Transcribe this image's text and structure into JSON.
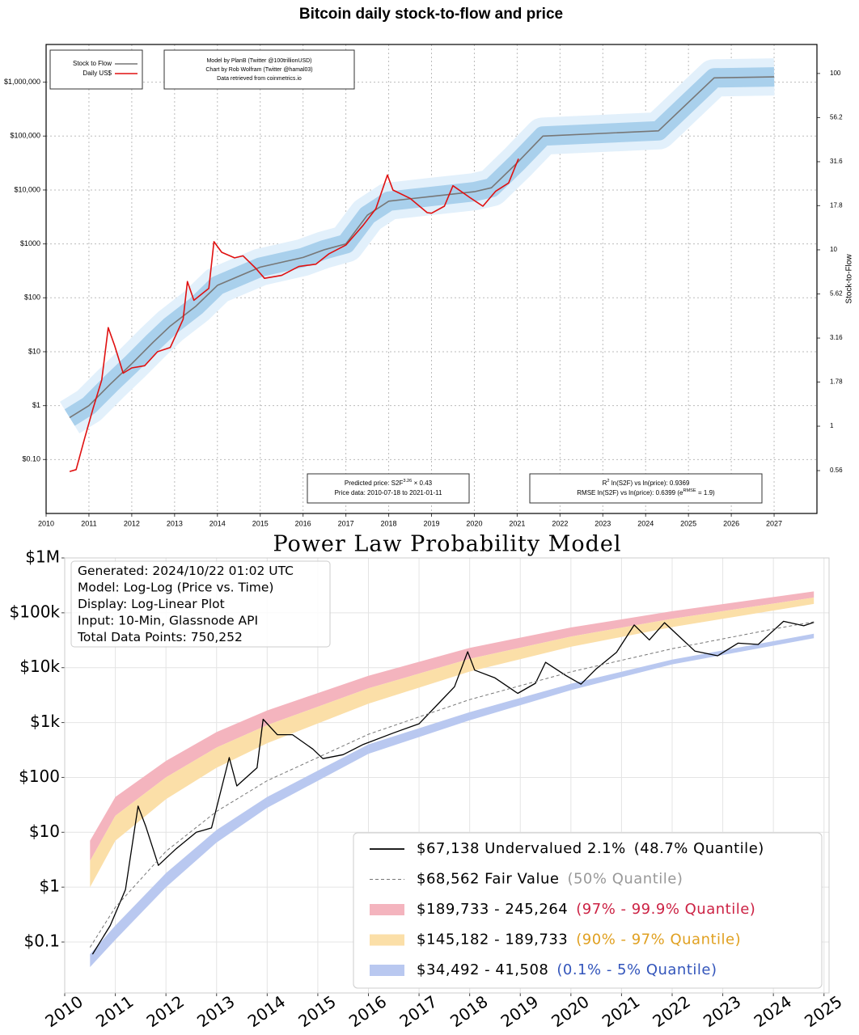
{
  "chart_data": [
    {
      "type": "line",
      "title": "Bitcoin daily stock-to-flow and price",
      "xlim": [
        2010,
        2028
      ],
      "xticks": [
        2010,
        2011,
        2012,
        2013,
        2014,
        2015,
        2016,
        2017,
        2018,
        2019,
        2020,
        2021,
        2022,
        2023,
        2024,
        2025,
        2026,
        2027
      ],
      "ylim": [
        0.01,
        5000000
      ],
      "log_y": true,
      "yticks": [
        {
          "value": 0.1,
          "label": "$0.10"
        },
        {
          "value": 1,
          "label": "$1"
        },
        {
          "value": 10,
          "label": "$10"
        },
        {
          "value": 100,
          "label": "$100"
        },
        {
          "value": 1000,
          "label": "$1000"
        },
        {
          "value": 10000,
          "label": "$10,000"
        },
        {
          "value": 100000,
          "label": "$100,000"
        },
        {
          "value": 1000000,
          "label": "$1,000,000"
        }
      ],
      "y2lim": [
        0.32,
        146
      ],
      "y2ticks": [
        0.56,
        1,
        1.78,
        3.16,
        5.62,
        10,
        17.8,
        31.6,
        56.2,
        100
      ],
      "y2label": "Stock-to-Flow",
      "grid": true,
      "grid_style": "dotted",
      "legend_position": "upper left",
      "series": [
        {
          "name": "Stock to Flow",
          "color": "#777777",
          "band": true,
          "x": [
            2010.55,
            2011,
            2011.5,
            2012,
            2012.5,
            2012.9,
            2013.5,
            2014,
            2015,
            2016,
            2016.5,
            2017,
            2017.5,
            2018,
            2019,
            2020,
            2020.4,
            2021,
            2021.6,
            2024.3,
            2025.6,
            2027
          ],
          "values": [
            0.6,
            1,
            2.5,
            6,
            15,
            30,
            70,
            170,
            370,
            560,
            780,
            1000,
            3400,
            6200,
            7600,
            9300,
            11000,
            32000,
            100000,
            125000,
            1200000,
            1250000
          ]
        },
        {
          "name": "Daily US$",
          "color": "#e01010",
          "x": [
            2010.55,
            2010.7,
            2010.9,
            2011.1,
            2011.3,
            2011.45,
            2011.6,
            2011.8,
            2012,
            2012.3,
            2012.6,
            2012.9,
            2013.2,
            2013.3,
            2013.45,
            2013.8,
            2013.92,
            2014.1,
            2014.4,
            2014.6,
            2014.9,
            2015.1,
            2015.5,
            2015.9,
            2016.3,
            2016.6,
            2017,
            2017.4,
            2017.7,
            2017.97,
            2018.1,
            2018.5,
            2018.9,
            2019,
            2019.3,
            2019.5,
            2019.9,
            2020.2,
            2020.5,
            2020.8,
            2021.03
          ],
          "values": [
            0.06,
            0.065,
            0.25,
            0.9,
            3,
            28,
            13,
            4,
            5,
            5.5,
            10,
            12,
            40,
            200,
            90,
            150,
            1100,
            700,
            550,
            600,
            350,
            230,
            260,
            380,
            420,
            650,
            950,
            2200,
            4500,
            19000,
            10000,
            7000,
            3800,
            3700,
            5000,
            12000,
            7200,
            5000,
            9500,
            13500,
            38000
          ]
        }
      ],
      "annotations": [
        {
          "lines": [
            [
              "Model by PlanB (Twitter @100trillionUSD)"
            ],
            [
              "Chart by Rob Wolfram (Twitter @hamal03)"
            ],
            [
              "Data retrieved from coinmetrics.io"
            ]
          ]
        },
        {
          "lines": [
            [
              "Predicted price: S2F",
              {
                "sup": "3.26"
              },
              "× 0.43"
            ],
            [
              "Price data: 2010-07-18 to 2021-01-11"
            ]
          ]
        },
        {
          "lines": [
            [
              "R",
              {
                "sup": "2"
              },
              "ln(S2F) vs ln(price): 0.9369"
            ],
            [
              "RMSE ln(S2F) vs ln(price): 0.6399 (e",
              {
                "sup": "RMSE"
              },
              "= 1.9)"
            ]
          ]
        }
      ]
    },
    {
      "type": "line",
      "title": "Power Law Probability Model",
      "xlim": [
        2010,
        2025.1
      ],
      "xticks": [
        2010,
        2011,
        2012,
        2013,
        2014,
        2015,
        2016,
        2017,
        2018,
        2019,
        2020,
        2021,
        2022,
        2023,
        2024,
        2025
      ],
      "ylim": [
        0.0118,
        1000000
      ],
      "log_y": true,
      "yticks": [
        {
          "value": 0.1,
          "label": "$0.1"
        },
        {
          "value": 1,
          "label": "$1"
        },
        {
          "value": 10,
          "label": "$10"
        },
        {
          "value": 100,
          "label": "$100"
        },
        {
          "value": 1000,
          "label": "$1k"
        },
        {
          "value": 10000,
          "label": "$10k"
        },
        {
          "value": 100000,
          "label": "$100k"
        },
        {
          "value": 1000000,
          "label": "$1M"
        }
      ],
      "grid": true,
      "grid_style": "solid",
      "legend_position": "lower right",
      "series": [
        {
          "name": "$67,138  Undervalued 2.1%",
          "note": "(48.7% Quantile)",
          "note_color": "#000000",
          "color": "#000000",
          "x": [
            2010.55,
            2010.9,
            2011.2,
            2011.45,
            2011.6,
            2011.85,
            2012.2,
            2012.6,
            2012.9,
            2013.25,
            2013.4,
            2013.8,
            2013.92,
            2014.2,
            2014.5,
            2014.9,
            2015.1,
            2015.5,
            2015.9,
            2016.5,
            2017,
            2017.4,
            2017.7,
            2017.96,
            2018.1,
            2018.5,
            2018.95,
            2019.3,
            2019.5,
            2019.9,
            2020.2,
            2020.5,
            2020.9,
            2021.25,
            2021.55,
            2021.85,
            2022.1,
            2022.45,
            2022.9,
            2023.3,
            2023.7,
            2023.95,
            2024.2,
            2024.6,
            2024.8
          ],
          "values": [
            0.06,
            0.2,
            0.9,
            30,
            13,
            2.5,
            5,
            10,
            12,
            230,
            70,
            150,
            1150,
            600,
            600,
            330,
            220,
            260,
            400,
            650,
            950,
            2300,
            4500,
            19500,
            9000,
            6500,
            3400,
            5200,
            12500,
            7200,
            5000,
            9500,
            19000,
            60000,
            32000,
            66000,
            40000,
            20000,
            16500,
            28000,
            26500,
            43000,
            70000,
            58000,
            67138
          ]
        },
        {
          "name": "$68,562  Fair Value",
          "note": "(50% Quantile)",
          "note_color": "#999999",
          "color": "#777777",
          "dashed": true,
          "x": [
            2010.5,
            2011,
            2012,
            2013,
            2014,
            2016,
            2018,
            2020,
            2022,
            2024,
            2024.8
          ],
          "values": [
            0.08,
            0.43,
            4.5,
            24,
            87,
            610,
            2620,
            8400,
            22100,
            50700,
            68562
          ]
        }
      ],
      "bands": [
        {
          "name": "$189,733 - 245,264",
          "note": "(97% - 99.9% Quantile)",
          "note_color": "#cc2244",
          "color": "#f4b4be",
          "x": [
            2010.5,
            2011,
            2012,
            2013,
            2014,
            2016,
            2018,
            2020,
            2022,
            2024.8
          ],
          "lower": [
            3,
            20,
            100,
            350,
            900,
            4200,
            14500,
            37000,
            78000,
            189733
          ],
          "upper": [
            7,
            44,
            200,
            670,
            1660,
            7100,
            23000,
            54000,
            107000,
            245264
          ]
        },
        {
          "name": "$145,182 - 189,733",
          "note": "(90% - 97% Quantile)",
          "note_color": "#e0a020",
          "color": "#fbdfa8",
          "x": [
            2010.5,
            2011,
            2012,
            2013,
            2014,
            2016,
            2018,
            2020,
            2022,
            2024.8
          ],
          "lower": [
            1,
            7,
            40,
            150,
            420,
            2200,
            8500,
            24000,
            55000,
            145182
          ],
          "upper": [
            3,
            20,
            100,
            350,
            900,
            4200,
            14500,
            37000,
            78000,
            189733
          ]
        },
        {
          "name": "$34,492 - 41,508",
          "note": "(0.1% - 5% Quantile)",
          "note_color": "#3355bb",
          "color": "#b9c8f0",
          "x": [
            2010.5,
            2011,
            2012,
            2013,
            2014,
            2016,
            2018,
            2020,
            2022,
            2024.8
          ],
          "lower": [
            0.035,
            0.11,
            1,
            6.5,
            28,
            270,
            1100,
            3900,
            11500,
            34492
          ],
          "upper": [
            0.06,
            0.2,
            1.8,
            11,
            44,
            400,
            1550,
            5100,
            14000,
            41508
          ]
        }
      ],
      "annotations": [
        {
          "lines": [
            [
              "Generated: 2024/10/22 01:02 UTC"
            ],
            [
              "Model: Log-Log (Price vs. Time)"
            ],
            [
              "Display: Log-Linear Plot"
            ],
            [
              "Input: 10-Min, Glassnode API"
            ],
            [
              "Total Data Points: 750,252"
            ]
          ]
        }
      ]
    }
  ]
}
